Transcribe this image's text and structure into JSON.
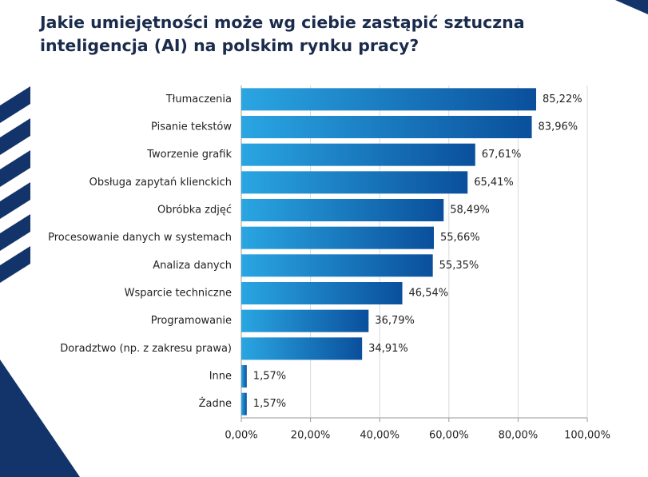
{
  "chart_data": {
    "type": "bar",
    "orientation": "horizontal",
    "title": "Jakie umiejętności może wg ciebie zastąpić sztuczna inteligencja (AI) na polskim rynku pracy?",
    "categories": [
      "Tłumaczenia",
      "Pisanie tekstów",
      "Tworzenie grafik",
      "Obsługa zapytań klienckich",
      "Obróbka zdjęć",
      "Procesowanie danych w systemach",
      "Analiza danych",
      "Wsparcie techniczne",
      "Programowanie",
      "Doradztwo (np. z zakresu prawa)",
      "Inne",
      "Żadne"
    ],
    "values": [
      85.22,
      83.96,
      67.61,
      65.41,
      58.49,
      55.66,
      55.35,
      46.54,
      36.79,
      34.91,
      1.57,
      1.57
    ],
    "value_labels": [
      "85,22%",
      "83,96%",
      "67,61%",
      "65,41%",
      "58,49%",
      "55,66%",
      "55,35%",
      "46,54%",
      "36,79%",
      "34,91%",
      "1,57%",
      "1,57%"
    ],
    "color": "#0a4f9c",
    "xlim": [
      0,
      100
    ],
    "xticks": [
      {
        "value": 0,
        "label": "0,00%"
      },
      {
        "value": 20,
        "label": "20,00%"
      },
      {
        "value": 40,
        "label": "40,00%"
      },
      {
        "value": 60,
        "label": "60,00%"
      },
      {
        "value": 80,
        "label": "80,00%"
      },
      {
        "value": 100,
        "label": "100,00%"
      }
    ],
    "grid": true
  }
}
